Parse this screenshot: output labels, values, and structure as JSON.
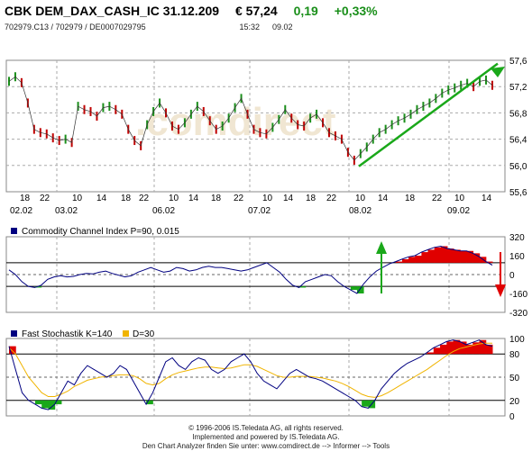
{
  "header": {
    "instrument": "CBK DEM_DAX_CASH_IC 31.12.209",
    "price": "€ 57,24",
    "change_abs": "0,19",
    "change_pct": "+0,33%",
    "ids": "702979.C13  /  702979  /  DE0007029795",
    "time": "15:32",
    "date": "09.02",
    "positive_color": "#1a8f1a"
  },
  "chart_data": [
    {
      "type": "line",
      "name": "price",
      "x_ticks": [
        "18",
        "22",
        "10",
        "14",
        "18",
        "22",
        "10",
        "14",
        "18",
        "22",
        "10",
        "14",
        "18",
        "22",
        "10",
        "14",
        "18",
        "22",
        "10",
        "14"
      ],
      "date_labels": [
        "02.02",
        "03.02",
        "06.02",
        "07.02",
        "08.02",
        "09.02"
      ],
      "y_ticks": [
        "57,6",
        "57,2",
        "56,8",
        "56,4",
        "56,0",
        "55,6"
      ],
      "ylim": [
        55.6,
        57.6
      ],
      "values": [
        57.28,
        57.35,
        57.26,
        56.95,
        56.55,
        56.5,
        56.48,
        56.42,
        56.38,
        56.4,
        56.35,
        56.9,
        56.85,
        56.82,
        56.75,
        56.88,
        56.9,
        56.85,
        56.78,
        56.55,
        56.38,
        56.3,
        56.62,
        56.82,
        56.95,
        56.8,
        56.6,
        56.55,
        56.65,
        56.78,
        56.9,
        56.82,
        56.68,
        56.55,
        56.6,
        56.72,
        56.88,
        57.02,
        56.78,
        56.55,
        56.5,
        56.48,
        56.58,
        56.7,
        56.85,
        56.72,
        56.62,
        56.6,
        56.72,
        56.78,
        56.65,
        56.5,
        56.45,
        56.4,
        56.2,
        56.08,
        56.18,
        56.28,
        56.4,
        56.5,
        56.55,
        56.62,
        56.68,
        56.72,
        56.78,
        56.85,
        56.9,
        56.95,
        57.02,
        57.1,
        57.15,
        57.18,
        57.22,
        57.25,
        57.2,
        57.28,
        57.3,
        57.22
      ],
      "trendline": [
        [
          56.0,
          57.55
        ]
      ],
      "grid": true,
      "watermark": ".comdirect"
    },
    {
      "type": "line",
      "name": "cci",
      "legend": "Commodity Channel Index P=90, 0.015",
      "y_ticks": [
        "320",
        "160",
        "0",
        "-160",
        "-320"
      ],
      "ylim": [
        -320,
        320
      ],
      "values": [
        40,
        0,
        -60,
        -100,
        -110,
        -90,
        -40,
        -20,
        -10,
        -20,
        -15,
        0,
        10,
        5,
        20,
        30,
        10,
        -5,
        -20,
        -10,
        20,
        40,
        60,
        40,
        20,
        30,
        60,
        50,
        30,
        40,
        60,
        70,
        60,
        60,
        50,
        40,
        30,
        40,
        60,
        80,
        100,
        60,
        20,
        -40,
        -90,
        -110,
        -60,
        -40,
        -20,
        0,
        -10,
        -60,
        -100,
        -130,
        -160,
        -80,
        -20,
        30,
        60,
        90,
        110,
        130,
        150,
        160,
        190,
        210,
        230,
        240,
        220,
        210,
        200,
        200,
        180,
        150,
        110,
        80
      ],
      "fill_low_color": "#1aa81a",
      "fill_high_color": "#e00000"
    },
    {
      "type": "line",
      "name": "stochastic",
      "legend": "Fast Stochastik K=140",
      "legend2": "D=30",
      "y_ticks": [
        "100",
        "80",
        "50",
        "20",
        "0"
      ],
      "ylim": [
        0,
        100
      ],
      "k_values": [
        90,
        60,
        30,
        20,
        15,
        10,
        8,
        15,
        30,
        45,
        40,
        55,
        65,
        60,
        55,
        50,
        55,
        65,
        60,
        45,
        30,
        15,
        30,
        50,
        70,
        75,
        65,
        60,
        70,
        75,
        72,
        60,
        55,
        60,
        70,
        75,
        80,
        70,
        55,
        45,
        40,
        35,
        45,
        55,
        60,
        55,
        50,
        48,
        45,
        40,
        35,
        30,
        25,
        20,
        12,
        10,
        20,
        35,
        45,
        55,
        62,
        68,
        72,
        76,
        82,
        88,
        92,
        96,
        98,
        96,
        92,
        95,
        98,
        92,
        90
      ],
      "d_values": [
        88,
        80,
        65,
        50,
        40,
        30,
        25,
        25,
        28,
        32,
        38,
        42,
        46,
        48,
        50,
        51,
        52,
        53,
        53,
        52,
        48,
        42,
        40,
        42,
        48,
        53,
        56,
        58,
        60,
        62,
        63,
        63,
        62,
        61,
        62,
        64,
        66,
        66,
        64,
        60,
        56,
        52,
        50,
        50,
        51,
        51,
        51,
        50,
        49,
        47,
        45,
        42,
        38,
        33,
        28,
        25,
        24,
        26,
        30,
        35,
        40,
        45,
        50,
        55,
        60,
        66,
        72,
        78,
        83,
        87,
        89,
        91,
        93,
        94,
        94
      ],
      "k_color": "#000080",
      "d_color": "#f0b400",
      "fill_low_color": "#1aa81a",
      "fill_high_color": "#e00000"
    }
  ],
  "footer": {
    "line1": "© 1996-2006 IS.Teledata AG, all rights reserved.",
    "line2": "Implemented and powered by IS.Teledata AG.",
    "line3": "Den Chart Analyzer finden Sie unter: www.comdirect.de --> Informer --> Tools"
  }
}
